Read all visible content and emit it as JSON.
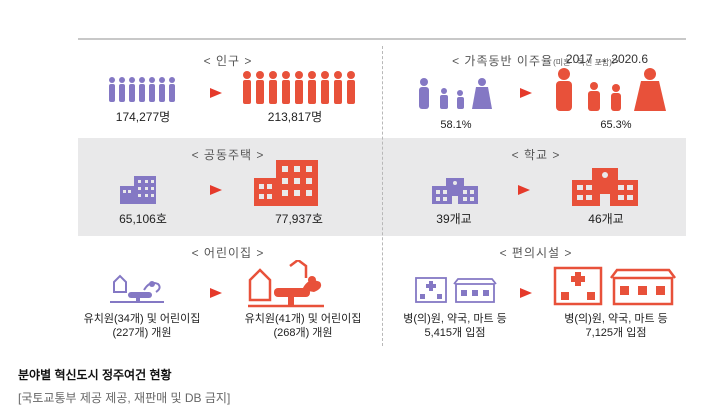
{
  "period": "2017 → 2020.6",
  "colors": {
    "before": "#8478c4",
    "after": "#e8513a",
    "arrow": "#e53a2b",
    "band": "#e9e9ea"
  },
  "panels": {
    "population": {
      "title": "< 인구 >",
      "before": "174,277명",
      "after": "213,817명"
    },
    "family": {
      "title": "< 가족동반 이주율",
      "title_small": "(미혼 · 독신 포함)",
      "title_end": ">",
      "before": "58.1%",
      "after": "65.3%"
    },
    "housing": {
      "title": "< 공동주택 >",
      "before": "65,106호",
      "after": "77,937호"
    },
    "school": {
      "title": "< 학교 >",
      "before": "39개교",
      "after": "46개교"
    },
    "daycare": {
      "title": "< 어린이집 >",
      "before_line1": "유치원(34개) 및 어린이집",
      "before_line2": "(227개) 개원",
      "after_line1": "유치원(41개) 및 어린이집",
      "after_line2": "(268개) 개원"
    },
    "convenience": {
      "title": "< 편의시설 >",
      "before_line1": "병(의)원, 약국, 마트 등",
      "before_line2": "5,415개 입점",
      "after_line1": "병(의)원, 약국, 마트 등",
      "after_line2": "7,125개 입점"
    }
  },
  "caption": "분야별 혁신도시 정주여건 현황",
  "credit": "[국토교통부 제공 제공, 재판매 및 DB 금지]"
}
